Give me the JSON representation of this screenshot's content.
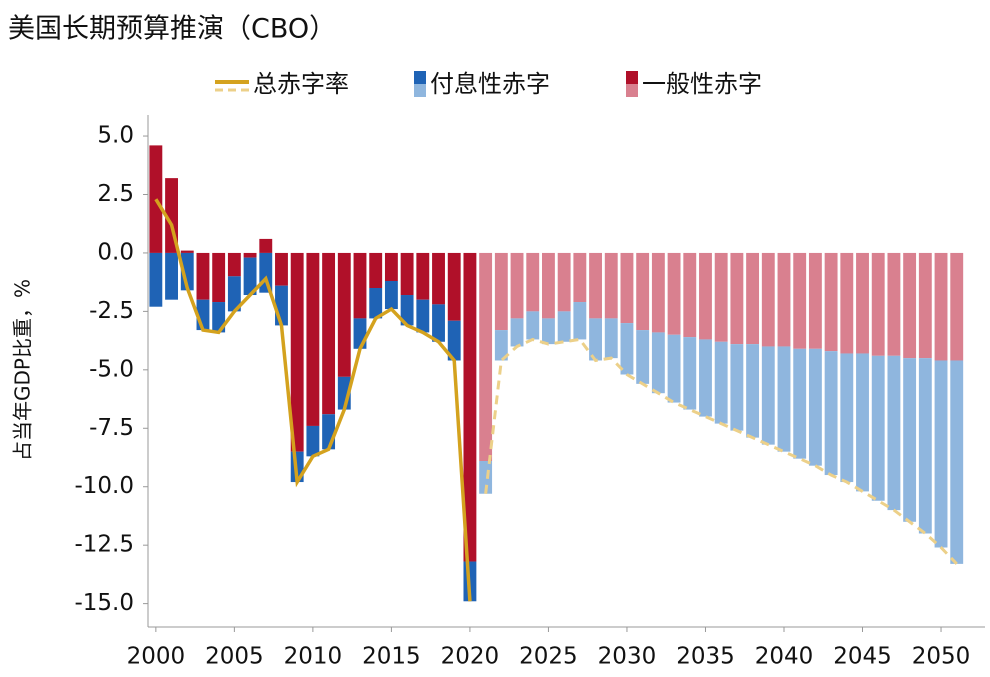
{
  "chart_data": {
    "type": "stacked_bar_line",
    "title": "美国长期预算推演（CBO）",
    "y_label": "占当年GDP比重，%",
    "x": [
      2000,
      2001,
      2002,
      2003,
      2004,
      2005,
      2006,
      2007,
      2008,
      2009,
      2010,
      2011,
      2012,
      2013,
      2014,
      2015,
      2016,
      2017,
      2018,
      2019,
      2020,
      2021,
      2022,
      2023,
      2024,
      2025,
      2026,
      2027,
      2028,
      2029,
      2030,
      2031,
      2032,
      2033,
      2034,
      2035,
      2036,
      2037,
      2038,
      2039,
      2040,
      2041,
      2042,
      2043,
      2044,
      2045,
      2046,
      2047,
      2048,
      2049,
      2050,
      2051
    ],
    "projection_start": 2021,
    "series": [
      {
        "name": "总赤字率",
        "kind": "line",
        "color": "#d4a21e",
        "projection_color": "#ecd089",
        "values": [
          2.3,
          1.2,
          -1.5,
          -3.3,
          -3.4,
          -2.5,
          -1.8,
          -1.1,
          -3.1,
          -9.8,
          -8.7,
          -8.4,
          -6.7,
          -4.1,
          -2.8,
          -2.4,
          -3.1,
          -3.4,
          -3.8,
          -4.6,
          -14.9,
          -10.3,
          -4.6,
          -4.0,
          -3.7,
          -3.9,
          -3.8,
          -3.7,
          -4.6,
          -4.5,
          -5.2,
          -5.6,
          -6.0,
          -6.4,
          -6.7,
          -7.0,
          -7.3,
          -7.6,
          -7.9,
          -8.2,
          -8.5,
          -8.8,
          -9.1,
          -9.5,
          -9.8,
          -10.2,
          -10.6,
          -11.0,
          -11.5,
          -12.0,
          -12.6,
          -13.3
        ]
      },
      {
        "name": "付息性赤字",
        "kind": "bar",
        "color": "#1f63b5",
        "projection_color": "#8fb6de",
        "values": [
          -2.3,
          -2.0,
          -1.6,
          -1.3,
          -1.3,
          -1.5,
          -1.6,
          -1.7,
          -1.7,
          -1.3,
          -1.3,
          -1.5,
          -1.4,
          -1.3,
          -1.3,
          -1.2,
          -1.3,
          -1.4,
          -1.6,
          -1.7,
          -1.7,
          -1.4,
          -1.3,
          -1.2,
          -1.2,
          -1.1,
          -1.3,
          -1.6,
          -1.8,
          -1.7,
          -2.2,
          -2.3,
          -2.6,
          -2.9,
          -3.1,
          -3.3,
          -3.5,
          -3.7,
          -4.0,
          -4.2,
          -4.5,
          -4.7,
          -5.0,
          -5.3,
          -5.5,
          -5.9,
          -6.2,
          -6.6,
          -7.0,
          -7.5,
          -8.0,
          -8.7
        ]
      },
      {
        "name": "一般性赤字",
        "kind": "bar",
        "color": "#b01029",
        "projection_color": "#d9808f",
        "values": [
          4.6,
          3.2,
          0.1,
          -2.0,
          -2.1,
          -1.0,
          -0.2,
          0.6,
          -1.4,
          -8.5,
          -7.4,
          -6.9,
          -5.3,
          -2.8,
          -1.5,
          -1.2,
          -1.8,
          -2.0,
          -2.2,
          -2.9,
          -13.2,
          -8.9,
          -3.3,
          -2.8,
          -2.5,
          -2.8,
          -2.5,
          -2.1,
          -2.8,
          -2.8,
          -3.0,
          -3.3,
          -3.4,
          -3.5,
          -3.6,
          -3.7,
          -3.8,
          -3.9,
          -3.9,
          -4.0,
          -4.0,
          -4.1,
          -4.1,
          -4.2,
          -4.3,
          -4.3,
          -4.4,
          -4.4,
          -4.5,
          -4.5,
          -4.6,
          -4.6
        ]
      }
    ],
    "xlim": [
      1999.5,
      2052.8
    ],
    "xticks": [
      2000,
      2005,
      2010,
      2015,
      2020,
      2025,
      2030,
      2035,
      2040,
      2045,
      2050
    ],
    "ylim": [
      -16,
      5.9
    ],
    "yticks": [
      {
        "value": 5,
        "label": "5.0"
      },
      2.5,
      {
        "value": 0,
        "label": "0.0"
      },
      -2.5,
      {
        "value": -5,
        "label": "-5.0"
      },
      -7.5,
      {
        "value": -10,
        "label": "-10.0"
      },
      -12.5,
      {
        "value": -15,
        "label": "-15.0"
      }
    ],
    "grid": false
  }
}
